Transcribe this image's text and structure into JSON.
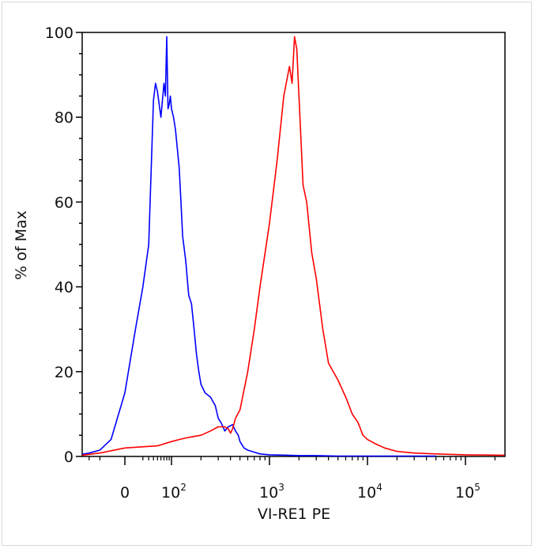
{
  "chart_data": {
    "type": "line",
    "title": "",
    "xlabel": "VI-RE1 PE",
    "ylabel": "% of Max",
    "x_scale": "biexponential",
    "xlim": [
      -150,
      250000
    ],
    "ylim": [
      0,
      100
    ],
    "grid": false,
    "y_ticks": [
      {
        "value": 0,
        "label": "0"
      },
      {
        "value": 20,
        "label": "20"
      },
      {
        "value": 40,
        "label": "40"
      },
      {
        "value": 60,
        "label": "60"
      },
      {
        "value": 80,
        "label": "80"
      },
      {
        "value": 100,
        "label": "100"
      }
    ],
    "x_ticks": [
      {
        "value": 0,
        "base": "0",
        "exp": ""
      },
      {
        "value": 100,
        "base": "10",
        "exp": "2"
      },
      {
        "value": 1000,
        "base": "10",
        "exp": "3"
      },
      {
        "value": 10000,
        "base": "10",
        "exp": "4"
      },
      {
        "value": 100000,
        "base": "10",
        "exp": "5"
      }
    ],
    "series": [
      {
        "color": "#0000ff",
        "x": [
          -150,
          -100,
          -50,
          -20,
          0,
          10,
          20,
          30,
          40,
          45,
          50,
          60,
          70,
          75,
          80,
          85,
          90,
          95,
          100,
          105,
          110,
          120,
          125,
          130,
          140,
          150,
          160,
          170,
          180,
          190,
          200,
          220,
          250,
          280,
          300,
          320,
          350,
          380,
          420,
          450,
          480,
          500,
          550,
          600,
          700,
          800,
          1000,
          1500,
          2000,
          3000,
          5000,
          10000,
          20000,
          50000
        ],
        "y": [
          0.5,
          0.8,
          1.5,
          4,
          15,
          30,
          40,
          50,
          84,
          88,
          86,
          80,
          88,
          85,
          99,
          82,
          83,
          85,
          82,
          80,
          77,
          68,
          60,
          52,
          46,
          38,
          36,
          30,
          24,
          20,
          17,
          15,
          14,
          12,
          9,
          8,
          6,
          7,
          7.5,
          6,
          5,
          3.5,
          2,
          1.5,
          1,
          0.6,
          0.4,
          0.3,
          0.2,
          0.2,
          0.1,
          0.1,
          0.1,
          0.1
        ]
      },
      {
        "color": "#ff0000",
        "x": [
          -150,
          -50,
          0,
          50,
          100,
          120,
          150,
          200,
          250,
          300,
          350,
          380,
          400,
          420,
          450,
          500,
          600,
          700,
          800,
          1000,
          1200,
          1400,
          1600,
          1700,
          1800,
          1900,
          2000,
          2200,
          2400,
          2700,
          3000,
          3500,
          4000,
          5000,
          6000,
          7000,
          8000,
          9000,
          10000,
          12000,
          15000,
          20000,
          30000,
          50000,
          100000,
          250000
        ],
        "y": [
          0.3,
          0.8,
          2,
          2.5,
          3.5,
          4,
          4.5,
          5,
          6,
          7,
          7,
          6.5,
          5.5,
          6.5,
          9,
          11,
          20,
          30,
          40,
          55,
          70,
          85,
          92,
          88,
          99,
          96,
          85,
          64,
          60,
          48,
          42,
          30,
          22,
          18,
          14,
          10,
          8,
          5,
          4,
          3,
          2,
          1.2,
          0.8,
          0.6,
          0.4,
          0.3
        ]
      }
    ]
  }
}
